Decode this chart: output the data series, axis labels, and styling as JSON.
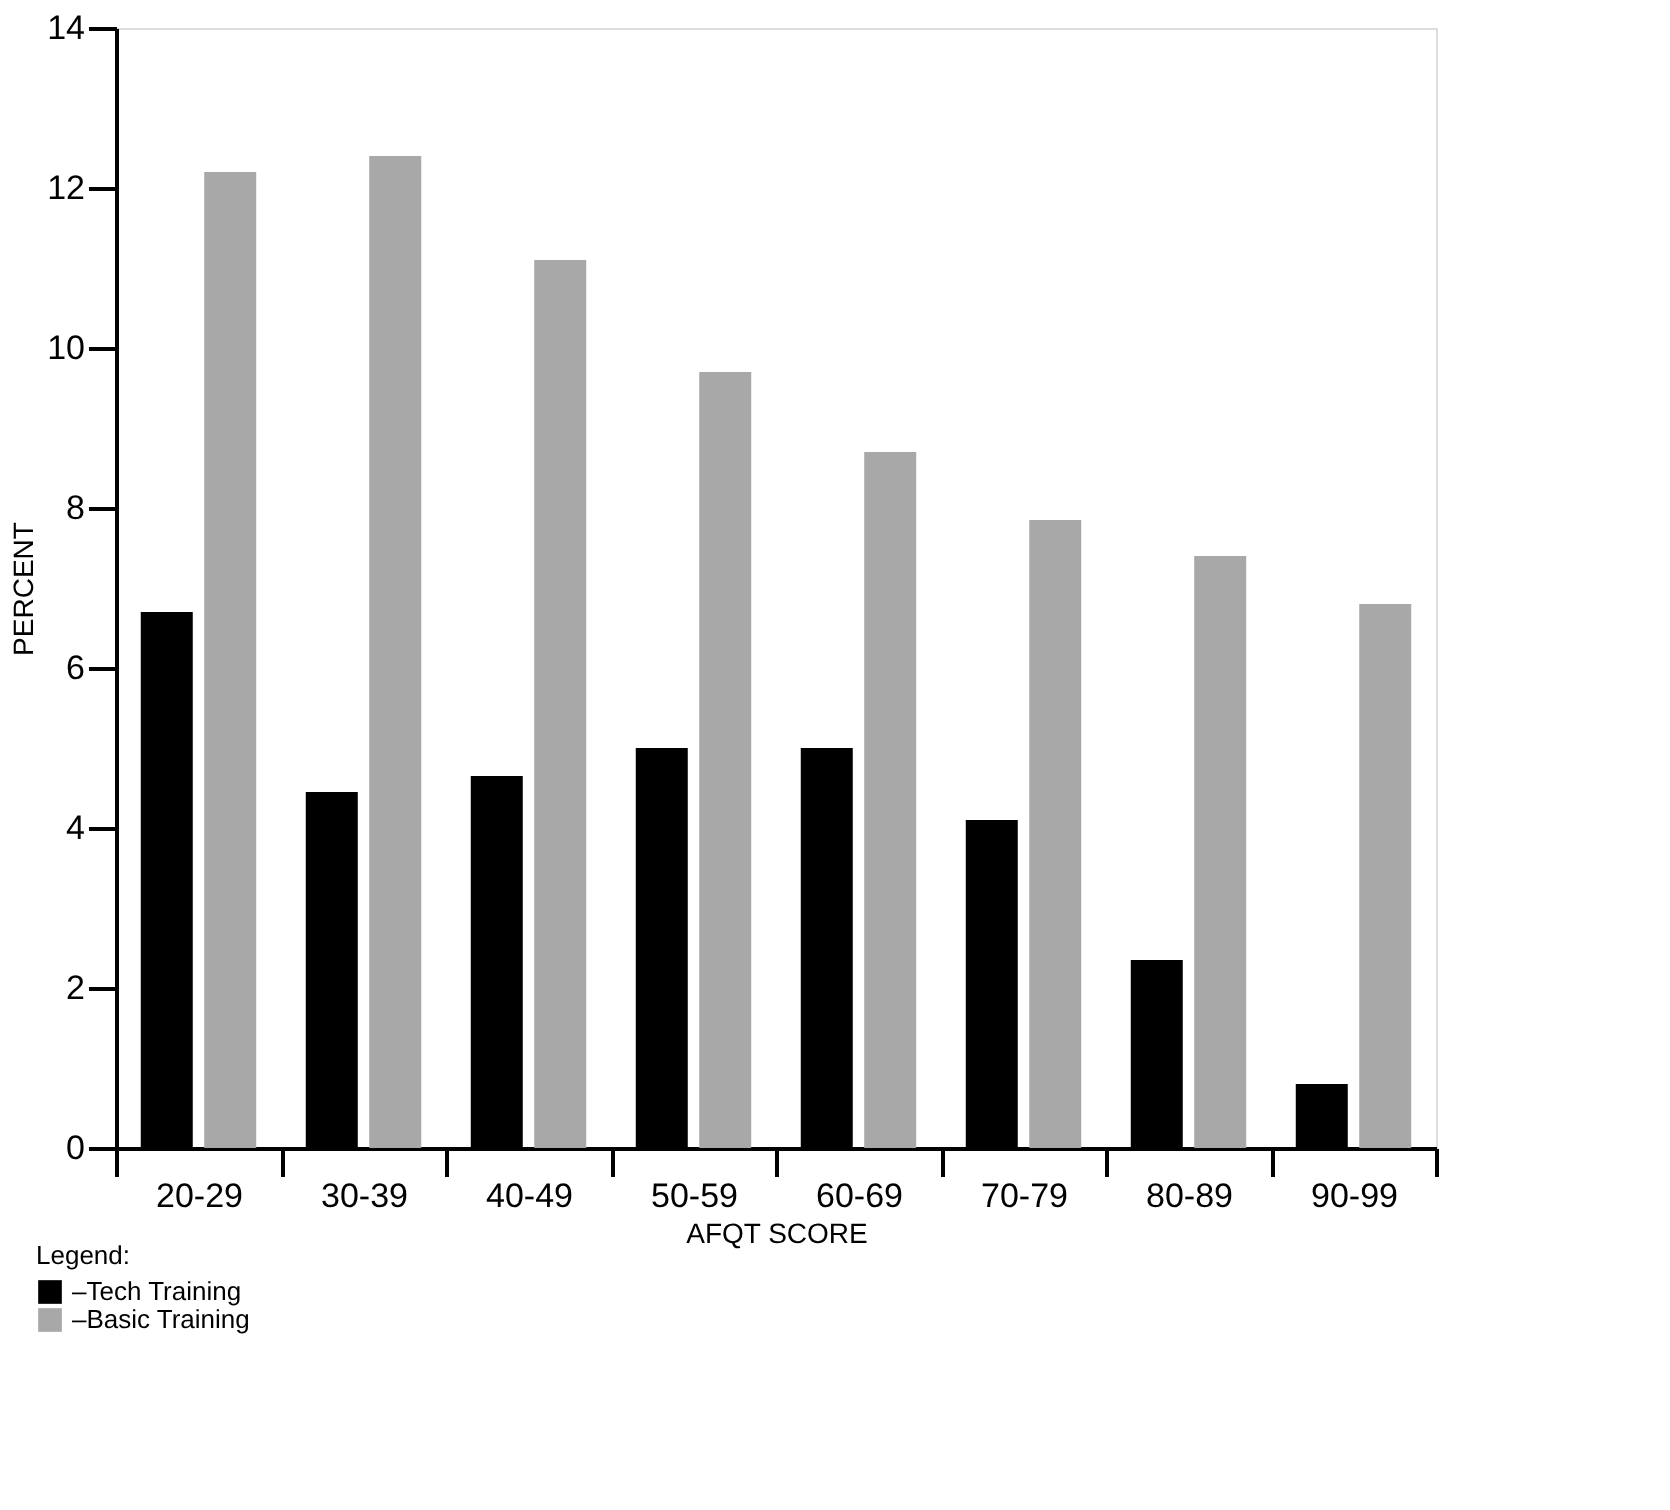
{
  "chart_data": {
    "type": "bar",
    "xlabel": "AFQT SCORE",
    "ylabel": "PERCENT",
    "legend_title": "Legend:",
    "categories": [
      "20-29",
      "30-39",
      "40-49",
      "50-59",
      "60-69",
      "70-79",
      "80-89",
      "90-99"
    ],
    "series": [
      {
        "name": "–Tech Training",
        "color": "#000000",
        "values": [
          6.7,
          4.45,
          4.65,
          5.0,
          5.0,
          4.1,
          2.35,
          0.8
        ]
      },
      {
        "name": "–Basic Training",
        "color": "#a8a8a8",
        "values": [
          12.2,
          12.4,
          11.1,
          9.7,
          8.7,
          7.85,
          7.4,
          6.8
        ]
      }
    ],
    "ylim": [
      0,
      14
    ],
    "yticks": [
      0,
      2,
      4,
      6,
      8,
      10,
      12,
      14
    ],
    "grid": false,
    "legend": "bottom left"
  }
}
